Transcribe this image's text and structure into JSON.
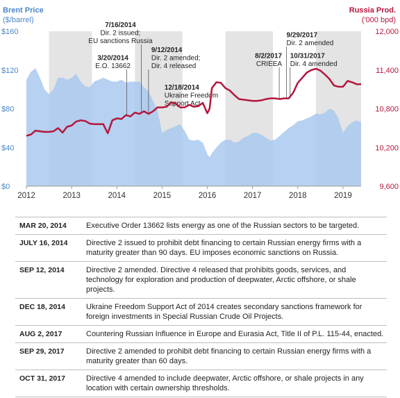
{
  "left_axis": {
    "title": "Brent Price",
    "unit": "($/barrel)"
  },
  "right_axis": {
    "title": "Russia Prod.",
    "unit": "('000 bpd)"
  },
  "chart_data": {
    "type": "area",
    "x_ticks": [
      "2012",
      "2013",
      "2014",
      "2015",
      "2016",
      "2017",
      "2018",
      "2019"
    ],
    "left_ticks": [
      "$0",
      "$40",
      "$80",
      "$120",
      "$160"
    ],
    "right_ticks": [
      "9,600",
      "10,200",
      "10,800",
      "11,400",
      "12,000"
    ],
    "left_ylim": [
      0,
      160
    ],
    "right_ylim": [
      9600,
      12000
    ],
    "xlim": [
      2012.0,
      2019.4
    ],
    "shaded_periods": [
      [
        2012.5,
        2013.45
      ],
      [
        2014.4,
        2015.45
      ],
      [
        2016.4,
        2017.45
      ],
      [
        2018.4,
        2019.4
      ]
    ],
    "series": [
      {
        "name": "Brent Price",
        "axis": "left",
        "color": "#a9c9ee",
        "x": [
          2012.0,
          2012.1,
          2012.2,
          2012.3,
          2012.4,
          2012.5,
          2012.6,
          2012.7,
          2012.8,
          2012.9,
          2013.0,
          2013.1,
          2013.2,
          2013.3,
          2013.4,
          2013.5,
          2013.6,
          2013.7,
          2013.8,
          2013.9,
          2014.0,
          2014.1,
          2014.2,
          2014.3,
          2014.4,
          2014.5,
          2014.6,
          2014.7,
          2014.8,
          2014.9,
          2015.0,
          2015.1,
          2015.2,
          2015.3,
          2015.4,
          2015.5,
          2015.6,
          2015.7,
          2015.8,
          2015.9,
          2016.0,
          2016.05,
          2016.1,
          2016.2,
          2016.3,
          2016.4,
          2016.5,
          2016.6,
          2016.7,
          2016.8,
          2016.9,
          2017.0,
          2017.1,
          2017.2,
          2017.3,
          2017.4,
          2017.5,
          2017.6,
          2017.7,
          2017.8,
          2017.9,
          2018.0,
          2018.1,
          2018.2,
          2018.3,
          2018.4,
          2018.5,
          2018.6,
          2018.7,
          2018.8,
          2018.9,
          2019.0,
          2019.1,
          2019.2,
          2019.3,
          2019.4
        ],
        "values": [
          110,
          118,
          122,
          112,
          100,
          95,
          100,
          112,
          112,
          110,
          112,
          116,
          108,
          103,
          102,
          108,
          110,
          112,
          110,
          108,
          108,
          110,
          107,
          108,
          108,
          108,
          102,
          98,
          88,
          78,
          55,
          58,
          60,
          62,
          64,
          57,
          48,
          47,
          48,
          45,
          33,
          30,
          34,
          40,
          45,
          48,
          48,
          45,
          46,
          50,
          52,
          55,
          55,
          53,
          50,
          47,
          48,
          52,
          56,
          60,
          63,
          67,
          68,
          70,
          72,
          75,
          74,
          76,
          80,
          78,
          70,
          55,
          62,
          66,
          68,
          66
        ]
      },
      {
        "name": "Russia Prod.",
        "axis": "right",
        "color": "#b5163c",
        "x": [
          2012.0,
          2012.1,
          2012.2,
          2012.3,
          2012.4,
          2012.5,
          2012.6,
          2012.7,
          2012.8,
          2012.9,
          2013.0,
          2013.1,
          2013.2,
          2013.3,
          2013.4,
          2013.5,
          2013.6,
          2013.7,
          2013.8,
          2013.9,
          2014.0,
          2014.1,
          2014.2,
          2014.3,
          2014.4,
          2014.5,
          2014.6,
          2014.7,
          2014.8,
          2014.9,
          2015.0,
          2015.1,
          2015.2,
          2015.3,
          2015.4,
          2015.5,
          2015.6,
          2015.7,
          2015.8,
          2015.9,
          2016.0,
          2016.05,
          2016.1,
          2016.2,
          2016.3,
          2016.4,
          2016.5,
          2016.6,
          2016.7,
          2016.8,
          2016.9,
          2017.0,
          2017.1,
          2017.2,
          2017.3,
          2017.4,
          2017.5,
          2017.6,
          2017.7,
          2017.8,
          2017.9,
          2018.0,
          2018.1,
          2018.2,
          2018.3,
          2018.4,
          2018.5,
          2018.6,
          2018.7,
          2018.8,
          2018.9,
          2019.0,
          2019.1,
          2019.2,
          2019.3,
          2019.4
        ],
        "values": [
          10380,
          10400,
          10460,
          10450,
          10440,
          10440,
          10450,
          10500,
          10430,
          10520,
          10540,
          10600,
          10620,
          10610,
          10570,
          10560,
          10560,
          10560,
          10420,
          10620,
          10650,
          10640,
          10700,
          10680,
          10740,
          10720,
          10760,
          10720,
          10760,
          10820,
          10820,
          10830,
          10900,
          10880,
          10820,
          10820,
          10860,
          10830,
          10840,
          10890,
          10730,
          10800,
          11120,
          11210,
          11200,
          11120,
          11080,
          11010,
          10950,
          10940,
          10930,
          10920,
          10920,
          10930,
          10950,
          10960,
          10960,
          10950,
          10960,
          10960,
          11050,
          11200,
          11280,
          11360,
          11400,
          11420,
          11390,
          11330,
          11260,
          11160,
          11140,
          11140,
          11230,
          11210,
          11180,
          11180
        ]
      }
    ],
    "annotations": [
      {
        "x": 2014.22,
        "lines": [
          "3/20/2014",
          "E.O. 13662"
        ]
      },
      {
        "x": 2014.54,
        "lines": [
          "7/16/2014",
          "Dir. 2 issued;",
          "EU sanctions Russia"
        ]
      },
      {
        "x": 2014.7,
        "lines": [
          "9/12/2014",
          "Dir. 2 amended;",
          "Dir. 4 released"
        ]
      },
      {
        "x": 2014.96,
        "lines": [
          "12/18/2014",
          "Ukraine Freedom",
          "Support Act"
        ]
      },
      {
        "x": 2017.59,
        "lines": [
          "8/2/2017",
          "CRIEEA"
        ]
      },
      {
        "x": 2017.75,
        "lines": [
          "9/29/2017",
          "Dir. 2 amended"
        ]
      },
      {
        "x": 2017.83,
        "lines": [
          "10/31/2017",
          "Dir. 4 amended"
        ]
      }
    ]
  },
  "events": [
    {
      "date": "MAR 20, 2014",
      "text": "Executive Order 13662 lists energy as one of the Russian sectors to be targeted."
    },
    {
      "date": "JULY 16, 2014",
      "text": "Directive 2 issued to prohibit debt financing to certain Russian energy firms with a maturity greater than 90 days. EU imposes economic sanctions on Russia."
    },
    {
      "date": "SEP 12, 2014",
      "text": "Directive 2 amended. Directive 4 released that prohibits goods, services, and technology for exploration and production of deepwater, Arctic offshore, or shale projects."
    },
    {
      "date": "DEC 18, 2014",
      "text": "Ukraine Freedom Support Act of 2014 creates secondary sanctions framework for foreign investments in Special Russian Crude Oil Projects."
    },
    {
      "date": "AUG 2, 2017",
      "text": "Countering Russian Influence in Europe and Eurasia Act, Title II of  P.L. 115-44, enacted."
    },
    {
      "date": "SEP 29, 2017",
      "text": "Directive 2 amended to prohibit debt financing to certain Russian energy firms with a maturity greater than 60 days."
    },
    {
      "date": "OCT 31, 2017",
      "text": "Directive 4 amended to include deepwater, Arctic offshore, or shale projects in any location with certain ownership thresholds."
    }
  ]
}
